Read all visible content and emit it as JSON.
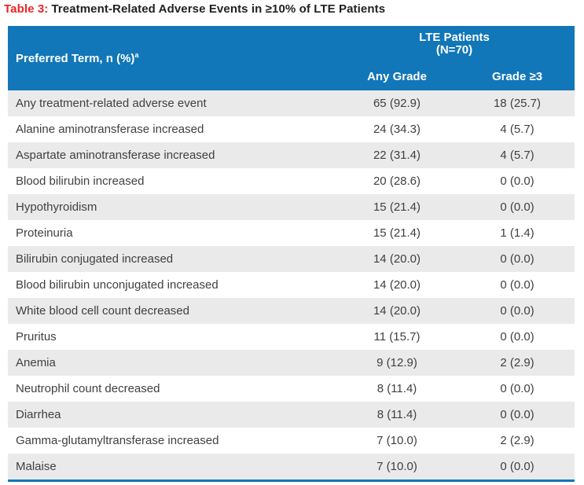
{
  "title": {
    "label": "Table 3:",
    "text": "Treatment-Related Adverse Events in ≥10% of LTE Patients"
  },
  "table": {
    "header": {
      "preferred_term": "Preferred Term, n (%)",
      "preferred_term_footnote": "a",
      "group_label": "LTE Patients",
      "group_sublabel": "(N=70)",
      "col_any_grade": "Any Grade",
      "col_grade_ge3": "Grade ≥3"
    },
    "rows": [
      {
        "term": "Any treatment-related adverse event",
        "any_grade": "65 (92.9)",
        "grade_ge3": "18 (25.7)"
      },
      {
        "term": "Alanine aminotransferase increased",
        "any_grade": "24 (34.3)",
        "grade_ge3": "4 (5.7)"
      },
      {
        "term": "Aspartate aminotransferase increased",
        "any_grade": "22 (31.4)",
        "grade_ge3": "4 (5.7)"
      },
      {
        "term": "Blood bilirubin increased",
        "any_grade": "20 (28.6)",
        "grade_ge3": "0 (0.0)"
      },
      {
        "term": "Hypothyroidism",
        "any_grade": "15 (21.4)",
        "grade_ge3": "0 (0.0)"
      },
      {
        "term": "Proteinuria",
        "any_grade": "15 (21.4)",
        "grade_ge3": "1 (1.4)"
      },
      {
        "term": "Bilirubin conjugated increased",
        "any_grade": "14 (20.0)",
        "grade_ge3": "0 (0.0)"
      },
      {
        "term": "Blood bilirubin unconjugated increased",
        "any_grade": "14 (20.0)",
        "grade_ge3": "0 (0.0)"
      },
      {
        "term": "White blood cell count decreased",
        "any_grade": "14 (20.0)",
        "grade_ge3": "0 (0.0)"
      },
      {
        "term": "Pruritus",
        "any_grade": "11 (15.7)",
        "grade_ge3": "0 (0.0)"
      },
      {
        "term": "Anemia",
        "any_grade": "9 (12.9)",
        "grade_ge3": "2 (2.9)"
      },
      {
        "term": "Neutrophil count decreased",
        "any_grade": "8 (11.4)",
        "grade_ge3": "0 (0.0)"
      },
      {
        "term": "Diarrhea",
        "any_grade": "8 (11.4)",
        "grade_ge3": "0 (0.0)"
      },
      {
        "term": "Gamma-glutamyltransferase increased",
        "any_grade": "7 (10.0)",
        "grade_ge3": "2 (2.9)"
      },
      {
        "term": "Malaise",
        "any_grade": "7 (10.0)",
        "grade_ge3": "0 (0.0)"
      }
    ]
  },
  "colors": {
    "header_blue": "#1277b8",
    "title_red": "#ec2227",
    "title_dark": "#231f20",
    "row_alt": "#eaeaea",
    "row_text": "#414042"
  }
}
